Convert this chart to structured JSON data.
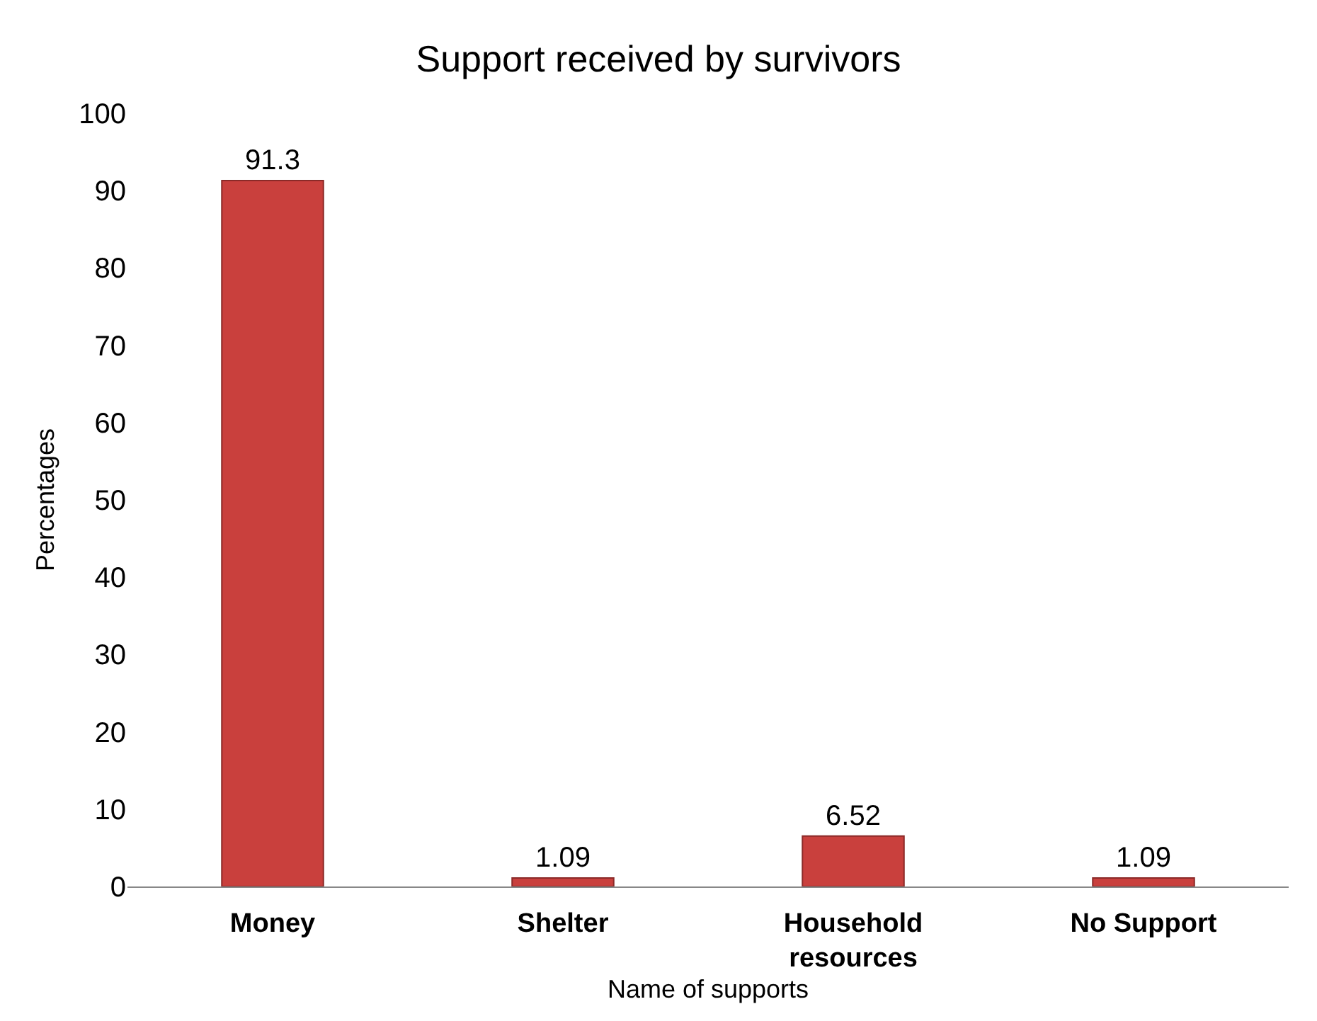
{
  "chart_data": {
    "type": "bar",
    "title": "Support received by survivors",
    "xlabel": "Name of supports",
    "ylabel": "Percentages",
    "categories": [
      "Money",
      "Shelter",
      "Household\nresources",
      "No Support"
    ],
    "values": [
      91.3,
      1.09,
      6.52,
      1.09
    ],
    "color": "#c9403d",
    "ylim": [
      0,
      100
    ],
    "yticks": [
      0,
      10,
      20,
      30,
      40,
      50,
      60,
      70,
      80,
      90,
      100
    ],
    "data_labels": true
  }
}
